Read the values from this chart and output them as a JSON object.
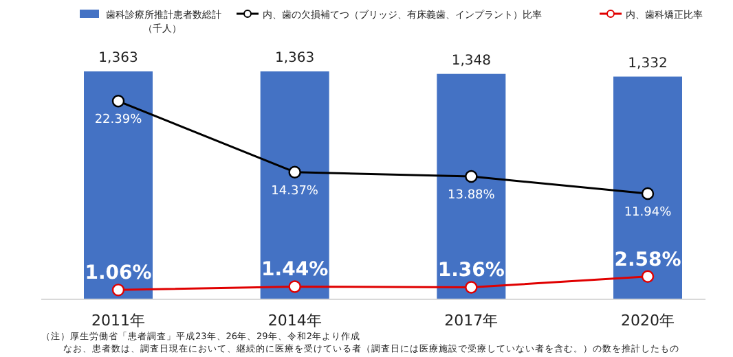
{
  "chart_data": {
    "type": "bar",
    "categories": [
      "2011年",
      "2014年",
      "2017年",
      "2020年"
    ],
    "series": [
      {
        "name": "歯科診療所推計患者数総計（千人）",
        "type": "bar",
        "color": "#4472c4",
        "values": [
          1363,
          1363,
          1348,
          1332
        ],
        "value_labels": [
          "1,363",
          "1,363",
          "1,348",
          "1,332"
        ]
      },
      {
        "name": "内、歯の欠損補てつ（ブリッジ、有床義歯、インプラント）比率",
        "type": "line",
        "axis": "y2",
        "color": "#000000",
        "values": [
          22.39,
          14.37,
          13.88,
          11.94
        ],
        "value_labels": [
          "22.39%",
          "14.37%",
          "13.88%",
          "11.94%"
        ]
      },
      {
        "name": "内、歯科矯正比率",
        "type": "line",
        "axis": "y2",
        "color": "#e00000",
        "values": [
          1.06,
          1.44,
          1.36,
          2.58
        ],
        "value_labels": [
          "1.06%",
          "1.44%",
          "1.36%",
          "2.58%"
        ]
      }
    ],
    "legend": "top",
    "marker": "circle",
    "line_style": "solid",
    "grid": false,
    "annotations": [
      "（注）厚生労働省「患者調査」平成23年、26年、29年、令和2年より作成",
      "なお、患者数は、調査日現在において、継続的に医療を受けている者（調査日には医療施設で受療していない者を含む。）の数を推計したもの"
    ]
  }
}
